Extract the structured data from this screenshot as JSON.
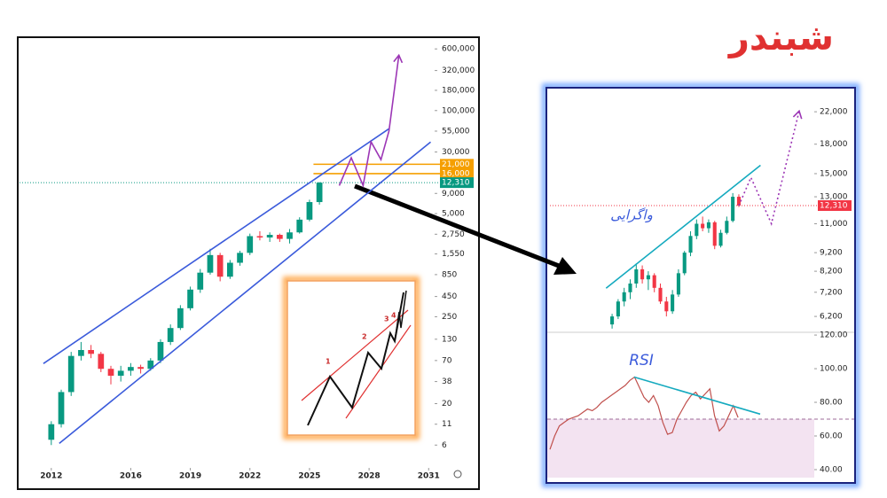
{
  "title": "شبندر",
  "chart_data": [
    {
      "type": "candlestick",
      "scale": "log",
      "xlim": [
        2010.4,
        2031.3
      ],
      "ylim": [
        3.8,
        780000
      ],
      "xticks": [
        2012,
        2016,
        2019,
        2022,
        2025,
        2028,
        2031
      ],
      "yticks": [
        {
          "value": 600000,
          "label": "600,000"
        },
        {
          "value": 320000,
          "label": "320,000"
        },
        {
          "value": 180000,
          "label": "180,000"
        },
        {
          "value": 100000,
          "label": "100,000"
        },
        {
          "value": 55000,
          "label": "55,000"
        },
        {
          "value": 30000,
          "label": "30,000"
        },
        {
          "value": 9000,
          "label": "9,000"
        },
        {
          "value": 5000,
          "label": "5,000"
        },
        {
          "value": 2750,
          "label": "2,750"
        },
        {
          "value": 1550,
          "label": "1,550"
        },
        850,
        450,
        250,
        130,
        70,
        38,
        20,
        11,
        6
      ],
      "up_color": "#089981",
      "down_color": "#f23645",
      "x": [
        2012.0,
        2012.5,
        2013.0,
        2013.5,
        2014.0,
        2014.5,
        2015.0,
        2015.5,
        2016.0,
        2016.5,
        2017.0,
        2017.5,
        2018.0,
        2018.5,
        2019.0,
        2019.5,
        2020.0,
        2020.5,
        2021.0,
        2021.5,
        2022.0,
        2022.5,
        2023.0,
        2023.5,
        2024.0,
        2024.5,
        2025.0,
        2025.5
      ],
      "open": [
        7,
        11,
        28,
        80,
        95,
        85,
        55,
        45,
        52,
        58,
        55,
        70,
        120,
        180,
        320,
        550,
        900,
        1500,
        800,
        1200,
        1600,
        2600,
        2500,
        2700,
        2400,
        2900,
        4200,
        7000
      ],
      "high": [
        12,
        30,
        90,
        120,
        110,
        90,
        60,
        60,
        65,
        62,
        75,
        130,
        200,
        350,
        600,
        1000,
        1800,
        1600,
        1300,
        1700,
        2800,
        3000,
        2900,
        2800,
        3200,
        4500,
        7500,
        12500
      ],
      "low": [
        6,
        10,
        25,
        70,
        75,
        50,
        35,
        38,
        45,
        48,
        52,
        65,
        110,
        170,
        300,
        500,
        850,
        700,
        750,
        1100,
        1500,
        2300,
        2200,
        2200,
        2100,
        2800,
        4000,
        6500
      ],
      "close": [
        11,
        28,
        80,
        95,
        85,
        55,
        45,
        52,
        58,
        55,
        70,
        120,
        180,
        320,
        550,
        900,
        1500,
        800,
        1200,
        1600,
        2600,
        2500,
        2700,
        2400,
        2900,
        4200,
        7000,
        12310
      ],
      "lines": [
        {
          "x": [
            2011.6,
            2029.0
          ],
          "values": [
            64,
            59000
          ],
          "color": "#3b5bdb",
          "style": "solid"
        },
        {
          "x": [
            2012.4,
            2031.1
          ],
          "values": [
            6.3,
            40000
          ],
          "color": "#3b5bdb",
          "style": "solid"
        },
        {
          "x": [
            2026.5,
            2027.1,
            2027.7,
            2028.1,
            2028.6,
            2029.0,
            2029.5
          ],
          "values": [
            11300,
            25400,
            11300,
            40400,
            24000,
            55000,
            500000
          ],
          "color": "#9c36b5",
          "style": "solid",
          "arrow": true
        }
      ],
      "levels": [
        {
          "value": 21000,
          "label": "21,000",
          "color": "#f59f00",
          "x_from": 2025.2,
          "style": "solid"
        },
        {
          "value": 16000,
          "label": "16,000",
          "color": "#f59f00",
          "x_from": 2025.2,
          "style": "solid"
        },
        {
          "value": 12310,
          "label": "12,310",
          "color": "#089981",
          "style": "dotted"
        }
      ]
    },
    {
      "type": "candlestick",
      "scale": "log",
      "xlim": [
        -10.3,
        33.5
      ],
      "ylim": [
        5620,
        24700
      ],
      "yticks": [
        {
          "value": 22000,
          "label": "22,000"
        },
        {
          "value": 18000,
          "label": "18,000"
        },
        {
          "value": 15000,
          "label": "15,000"
        },
        {
          "value": 13000,
          "label": "13,000"
        },
        {
          "value": 11000,
          "label": "11,000"
        },
        {
          "value": 9200,
          "label": "9,200"
        },
        {
          "value": 8200,
          "label": "8,200"
        },
        {
          "value": 7200,
          "label": "7,200"
        },
        {
          "value": 6200,
          "label": "6,200"
        }
      ],
      "up_color": "#089981",
      "down_color": "#f23645",
      "x": [
        0,
        1,
        2,
        3,
        4,
        5,
        6,
        7,
        8,
        9,
        10,
        11,
        12,
        13,
        14,
        15,
        16,
        17,
        18,
        19,
        20,
        21
      ],
      "open": [
        5900,
        6200,
        6800,
        7200,
        7600,
        8300,
        7800,
        8000,
        7400,
        6800,
        6400,
        7100,
        8100,
        9200,
        10200,
        11000,
        10700,
        11100,
        9600,
        10400,
        11200,
        13000
      ],
      "high": [
        6300,
        6900,
        7400,
        7800,
        8600,
        8500,
        8200,
        8100,
        7600,
        7000,
        7300,
        8300,
        9300,
        10500,
        11300,
        11500,
        11300,
        11200,
        10600,
        11500,
        13300,
        13200
      ],
      "low": [
        5750,
        6100,
        6600,
        6900,
        7400,
        7600,
        7300,
        7200,
        6700,
        6200,
        6300,
        7000,
        8000,
        9000,
        10000,
        10500,
        10400,
        9400,
        9500,
        10300,
        11100,
        12200
      ],
      "close": [
        6200,
        6800,
        7200,
        7600,
        8300,
        7800,
        8000,
        7400,
        6800,
        6400,
        7100,
        8100,
        9200,
        10200,
        11000,
        10700,
        11100,
        9600,
        10400,
        11200,
        13000,
        12310
      ],
      "lines": [
        {
          "x": [
            -1,
            24.6
          ],
          "values": [
            7380,
            15800
          ],
          "color": "#15aabf",
          "style": "solid"
        },
        {
          "x": [
            21,
            23,
            26.4,
            31
          ],
          "values": [
            12310,
            14650,
            11000,
            22100
          ],
          "color": "#9c36b5",
          "style": "dotted",
          "arrow": true
        }
      ],
      "levels": [
        {
          "value": 12310,
          "label": "12,310",
          "color": "#f23645",
          "style": "dotted"
        }
      ],
      "annotation": "واگرایی"
    },
    {
      "type": "line",
      "title": "RSI",
      "xlim": [
        0,
        56.2
      ],
      "ylim": [
        38.4,
        121.1
      ],
      "yticks": [
        {
          "value": 120,
          "label": "120.00"
        },
        {
          "value": 100,
          "label": "100.00"
        },
        {
          "value": 80,
          "label": "80.00"
        },
        {
          "value": 60,
          "label": "60.00"
        },
        {
          "value": 40,
          "label": "40.00"
        }
      ],
      "color": "#c0504d",
      "values": [
        52,
        60,
        66,
        68,
        70,
        71,
        72,
        74,
        76,
        75,
        77,
        80,
        82,
        84,
        86,
        88,
        90,
        93,
        95,
        89,
        83,
        80,
        84,
        78,
        68,
        61,
        62,
        70,
        75,
        80,
        84,
        86,
        82,
        85,
        88,
        72,
        63,
        66,
        72,
        78,
        71
      ],
      "threshold": 70,
      "lines": [
        {
          "x": [
            17.9,
            44.7
          ],
          "values": [
            95,
            73
          ],
          "color": "#15aabf",
          "style": "solid"
        }
      ]
    }
  ]
}
